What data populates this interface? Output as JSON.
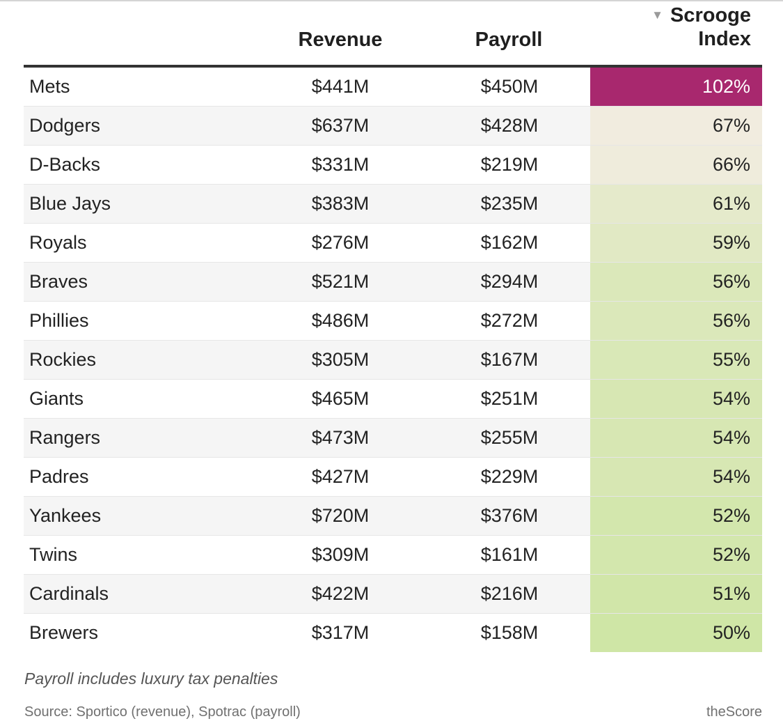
{
  "chart_data": {
    "type": "table",
    "columns": [
      "",
      "Revenue",
      "Payroll",
      "Scrooge Index"
    ],
    "sorted_column": "Scrooge Index",
    "rows": [
      {
        "team": "Mets",
        "revenue": "$441M",
        "payroll": "$450M",
        "index": "102%",
        "index_value": 102
      },
      {
        "team": "Dodgers",
        "revenue": "$637M",
        "payroll": "$428M",
        "index": "67%",
        "index_value": 67
      },
      {
        "team": "D-Backs",
        "revenue": "$331M",
        "payroll": "$219M",
        "index": "66%",
        "index_value": 66
      },
      {
        "team": "Blue Jays",
        "revenue": "$383M",
        "payroll": "$235M",
        "index": "61%",
        "index_value": 61
      },
      {
        "team": "Royals",
        "revenue": "$276M",
        "payroll": "$162M",
        "index": "59%",
        "index_value": 59
      },
      {
        "team": "Braves",
        "revenue": "$521M",
        "payroll": "$294M",
        "index": "56%",
        "index_value": 56
      },
      {
        "team": "Phillies",
        "revenue": "$486M",
        "payroll": "$272M",
        "index": "56%",
        "index_value": 56
      },
      {
        "team": "Rockies",
        "revenue": "$305M",
        "payroll": "$167M",
        "index": "55%",
        "index_value": 55
      },
      {
        "team": "Giants",
        "revenue": "$465M",
        "payroll": "$251M",
        "index": "54%",
        "index_value": 54
      },
      {
        "team": "Rangers",
        "revenue": "$473M",
        "payroll": "$255M",
        "index": "54%",
        "index_value": 54
      },
      {
        "team": "Padres",
        "revenue": "$427M",
        "payroll": "$229M",
        "index": "54%",
        "index_value": 54
      },
      {
        "team": "Yankees",
        "revenue": "$720M",
        "payroll": "$376M",
        "index": "52%",
        "index_value": 52
      },
      {
        "team": "Twins",
        "revenue": "$309M",
        "payroll": "$161M",
        "index": "52%",
        "index_value": 52
      },
      {
        "team": "Cardinals",
        "revenue": "$422M",
        "payroll": "$216M",
        "index": "51%",
        "index_value": 51
      },
      {
        "team": "Brewers",
        "revenue": "$317M",
        "payroll": "$158M",
        "index": "50%",
        "index_value": 50
      }
    ],
    "color_scale": {
      "low": "#cfe6a6",
      "mid": "#f1ecdf",
      "high": "#a8286e",
      "low_value": 50,
      "high_value": 102
    }
  },
  "header": {
    "revenue": "Revenue",
    "payroll": "Payroll",
    "index_line1": "Scrooge",
    "index_line2": "Index",
    "sort_icon": "sort-descending-icon"
  },
  "footer": {
    "note": "Payroll includes luxury tax penalties",
    "source": "Source: Sportico (revenue), Spotrac (payroll)",
    "brand": "theScore"
  }
}
